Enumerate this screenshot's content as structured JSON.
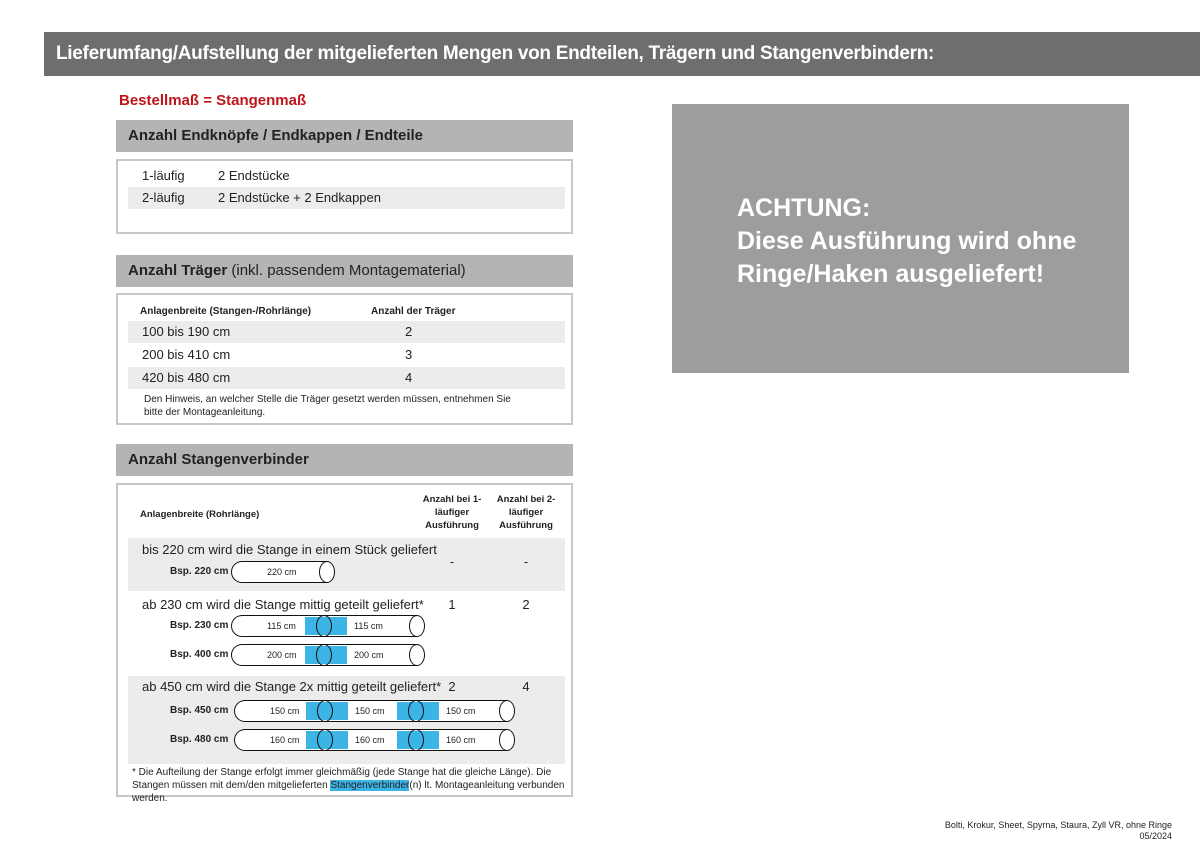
{
  "title": "Lieferumfang/Aufstellung der mitgelieferten Mengen von Endteilen, Trägern und Stangenverbindern:",
  "order_note": "Bestellmaß = Stangenmaß",
  "endteile": {
    "heading": "Anzahl Endknöpfe / Endkappen / Endteile",
    "rows": [
      [
        "1-läufig",
        "2 Endstücke"
      ],
      [
        "2-läufig",
        "2 Endstücke + 2 Endkappen"
      ]
    ]
  },
  "traeger": {
    "heading_bold": "Anzahl Träger",
    "heading_normal": " (inkl. passendem Montagematerial)",
    "columns": [
      "Anlagenbreite (Stangen-/Rohrlänge)",
      "Anzahl der Träger"
    ],
    "rows": [
      [
        "100 bis 190 cm",
        "2"
      ],
      [
        "200 bis 410 cm",
        "3"
      ],
      [
        "420 bis 480 cm",
        "4"
      ]
    ],
    "note": "Den Hinweis, an welcher Stelle die Träger gesetzt werden müssen, entnehmen Sie bitte der Montageanleitung."
  },
  "verbinder": {
    "heading": "Anzahl Stangenverbinder",
    "columns": [
      "Anlagenbreite (Rohrlänge)",
      "Anzahl bei 1-läufiger Ausführung",
      "Anzahl bei 2-läufiger Ausführung"
    ],
    "groups": [
      {
        "text": "bis 220 cm wird die Stange in einem Stück geliefert",
        "one": "-",
        "two": "-",
        "examples": [
          {
            "label": "Bsp. 220 cm",
            "segments": [
              "220 cm"
            ]
          }
        ]
      },
      {
        "text": "ab 230 cm wird die Stange mittig geteilt geliefert*",
        "one": "1",
        "two": "2",
        "examples": [
          {
            "label": "Bsp. 230 cm",
            "segments": [
              "115 cm",
              "115 cm"
            ]
          },
          {
            "label": "Bsp. 400 cm",
            "segments": [
              "200 cm",
              "200 cm"
            ]
          }
        ]
      },
      {
        "text": "ab 450 cm wird die Stange 2x mittig geteilt geliefert*",
        "one": "2",
        "two": "4",
        "examples": [
          {
            "label": "Bsp. 450 cm",
            "segments": [
              "150 cm",
              "150 cm",
              "150 cm"
            ]
          },
          {
            "label": "Bsp. 480 cm",
            "segments": [
              "160 cm",
              "160 cm",
              "160 cm"
            ]
          }
        ]
      }
    ],
    "footnote_pre": "* Die Aufteilung der Stange erfolgt immer gleichmäßig (jede Stange hat die gleiche Länge). Die Stangen müssen mit dem/den mitgelieferten ",
    "footnote_highlight": "Stangenverbinder",
    "footnote_post": "(n) lt. Montageanleitung verbunden werden."
  },
  "warning": {
    "line1": "ACHTUNG:",
    "line2": "Diese Ausführung wird ohne",
    "line3": "Ringe/Haken ausgeliefert!"
  },
  "footer": {
    "products": "Bolti, Krokur, Sheet, Spyrna, Staura, Zyll VR, ohne Ringe",
    "date": "05/2024"
  },
  "colors": {
    "banner": "#6e6e6e",
    "accent_red": "#c0141c",
    "connector_blue": "#3cb4e6",
    "warning_bg": "#9d9d9d"
  }
}
